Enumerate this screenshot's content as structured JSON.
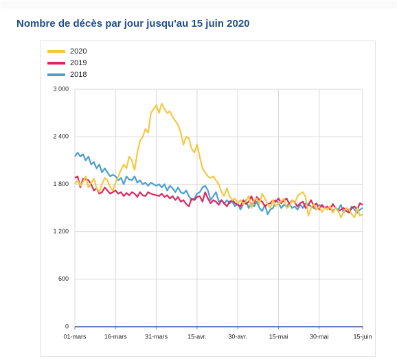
{
  "chart_data": {
    "type": "line",
    "title": "Nombre de décès par jour jusqu'au 15 juin 2020",
    "categories": [
      "01-mars",
      null,
      null,
      null,
      null,
      null,
      null,
      null,
      null,
      null,
      null,
      null,
      null,
      null,
      null,
      "16-mars",
      null,
      null,
      null,
      null,
      null,
      null,
      null,
      null,
      null,
      null,
      null,
      null,
      null,
      null,
      "31-mars",
      null,
      null,
      null,
      null,
      null,
      null,
      null,
      null,
      null,
      null,
      null,
      null,
      null,
      null,
      "15-avr.",
      null,
      null,
      null,
      null,
      null,
      null,
      null,
      null,
      null,
      null,
      null,
      null,
      null,
      null,
      "30-avr.",
      null,
      null,
      null,
      null,
      null,
      null,
      null,
      null,
      null,
      null,
      null,
      null,
      null,
      null,
      "15-mai",
      null,
      null,
      null,
      null,
      null,
      null,
      null,
      null,
      null,
      null,
      null,
      null,
      null,
      null,
      "30-mai",
      null,
      null,
      null,
      null,
      null,
      null,
      null,
      null,
      null,
      null,
      null,
      null,
      null,
      null,
      null,
      "15-juin"
    ],
    "series": [
      {
        "name": "2020",
        "color": "#f5c842",
        "values": [
          1800,
          1850,
          1780,
          1830,
          1900,
          1760,
          1820,
          1870,
          1750,
          1700,
          1800,
          1880,
          1850,
          1760,
          1720,
          1820,
          1900,
          1980,
          2050,
          2000,
          2150,
          2100,
          1980,
          2200,
          2350,
          2400,
          2500,
          2450,
          2700,
          2750,
          2800,
          2700,
          2820,
          2750,
          2700,
          2720,
          2650,
          2600,
          2550,
          2450,
          2300,
          2400,
          2380,
          2250,
          2200,
          2300,
          2150,
          2000,
          1950,
          1900,
          1880,
          1900,
          1850,
          1800,
          1700,
          1650,
          1750,
          1650,
          1600,
          1620,
          1560,
          1600,
          1550,
          1580,
          1650,
          1500,
          1600,
          1620,
          1550,
          1680,
          1620,
          1550,
          1500,
          1600,
          1520,
          1560,
          1580,
          1620,
          1500,
          1520,
          1600,
          1560,
          1650,
          1680,
          1700,
          1640,
          1400,
          1500,
          1550,
          1480,
          1520,
          1450,
          1500,
          1480,
          1520,
          1440,
          1500,
          1460,
          1380,
          1450,
          1500,
          1480,
          1420,
          1380,
          1500,
          1400,
          1420
        ]
      },
      {
        "name": "2019",
        "color": "#e0245e",
        "values": [
          1880,
          1900,
          1760,
          1870,
          1860,
          1850,
          1800,
          1720,
          1750,
          1680,
          1700,
          1760,
          1720,
          1680,
          1700,
          1720,
          1680,
          1700,
          1650,
          1690,
          1660,
          1700,
          1680,
          1640,
          1700,
          1660,
          1650,
          1700,
          1680,
          1670,
          1660,
          1650,
          1680,
          1640,
          1660,
          1620,
          1650,
          1600,
          1640,
          1580,
          1600,
          1550,
          1520,
          1620,
          1600,
          1640,
          1650,
          1580,
          1700,
          1620,
          1560,
          1600,
          1580,
          1540,
          1600,
          1560,
          1520,
          1580,
          1600,
          1560,
          1540,
          1520,
          1600,
          1550,
          1580,
          1650,
          1560,
          1640,
          1600,
          1580,
          1520,
          1550,
          1560,
          1600,
          1580,
          1620,
          1560,
          1600,
          1620,
          1550,
          1600,
          1570,
          1520,
          1560,
          1580,
          1500,
          1540,
          1600,
          1520,
          1560,
          1480,
          1540,
          1500,
          1520,
          1480,
          1550,
          1500,
          1460,
          1480,
          1500,
          1460,
          1440,
          1500,
          1520,
          1480,
          1560,
          1540
        ]
      },
      {
        "name": "2018",
        "color": "#4a9fd0",
        "values": [
          2150,
          2200,
          2150,
          2180,
          2100,
          2150,
          2050,
          2080,
          2000,
          2050,
          1950,
          2000,
          1950,
          1900,
          1920,
          1900,
          1850,
          1880,
          1800,
          1900,
          1860,
          1850,
          1900,
          1820,
          1850,
          1800,
          1820,
          1780,
          1820,
          1800,
          1780,
          1800,
          1760,
          1800,
          1720,
          1780,
          1750,
          1700,
          1760,
          1700,
          1680,
          1720,
          1650,
          1600,
          1620,
          1680,
          1700,
          1760,
          1780,
          1720,
          1600,
          1650,
          1700,
          1580,
          1600,
          1550,
          1600,
          1560,
          1580,
          1520,
          1560,
          1480,
          1550,
          1600,
          1500,
          1560,
          1520,
          1580,
          1500,
          1460,
          1540,
          1420,
          1480,
          1500,
          1600,
          1560,
          1500,
          1540,
          1520,
          1560,
          1500,
          1520,
          1480,
          1540,
          1500,
          1560,
          1540,
          1520,
          1500,
          1480,
          1540,
          1520,
          1500,
          1480,
          1520,
          1460,
          1500,
          1480,
          1540,
          1440,
          1500,
          1460,
          1520,
          1480,
          1440,
          1480,
          1500
        ]
      }
    ],
    "ylim": [
      0,
      3000
    ],
    "yticks": [
      {
        "value": 0,
        "label": "0"
      },
      {
        "value": 600,
        "label": "600"
      },
      {
        "value": 1200,
        "label": "1 200"
      },
      {
        "value": 1800,
        "label": "1 800"
      },
      {
        "value": 2400,
        "label": "2 400"
      },
      {
        "value": 3000,
        "label": "3 000"
      }
    ],
    "grid": true
  }
}
